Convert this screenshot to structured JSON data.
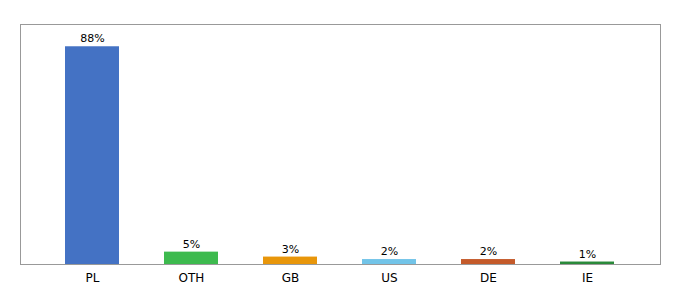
{
  "chart_data": {
    "type": "bar",
    "categories": [
      "PL",
      "OTH",
      "GB",
      "US",
      "DE",
      "IE"
    ],
    "values": [
      88,
      5,
      3,
      2,
      2,
      1
    ],
    "value_labels": [
      "88%",
      "5%",
      "3%",
      "2%",
      "2%",
      "1%"
    ],
    "colors": [
      "#4472c4",
      "#3dba4e",
      "#e8960a",
      "#72c4e8",
      "#c45a2a",
      "#2a8a3a"
    ],
    "ylim": [
      0,
      97
    ],
    "data_labels": true,
    "tick_labels": "x",
    "grid": false
  }
}
